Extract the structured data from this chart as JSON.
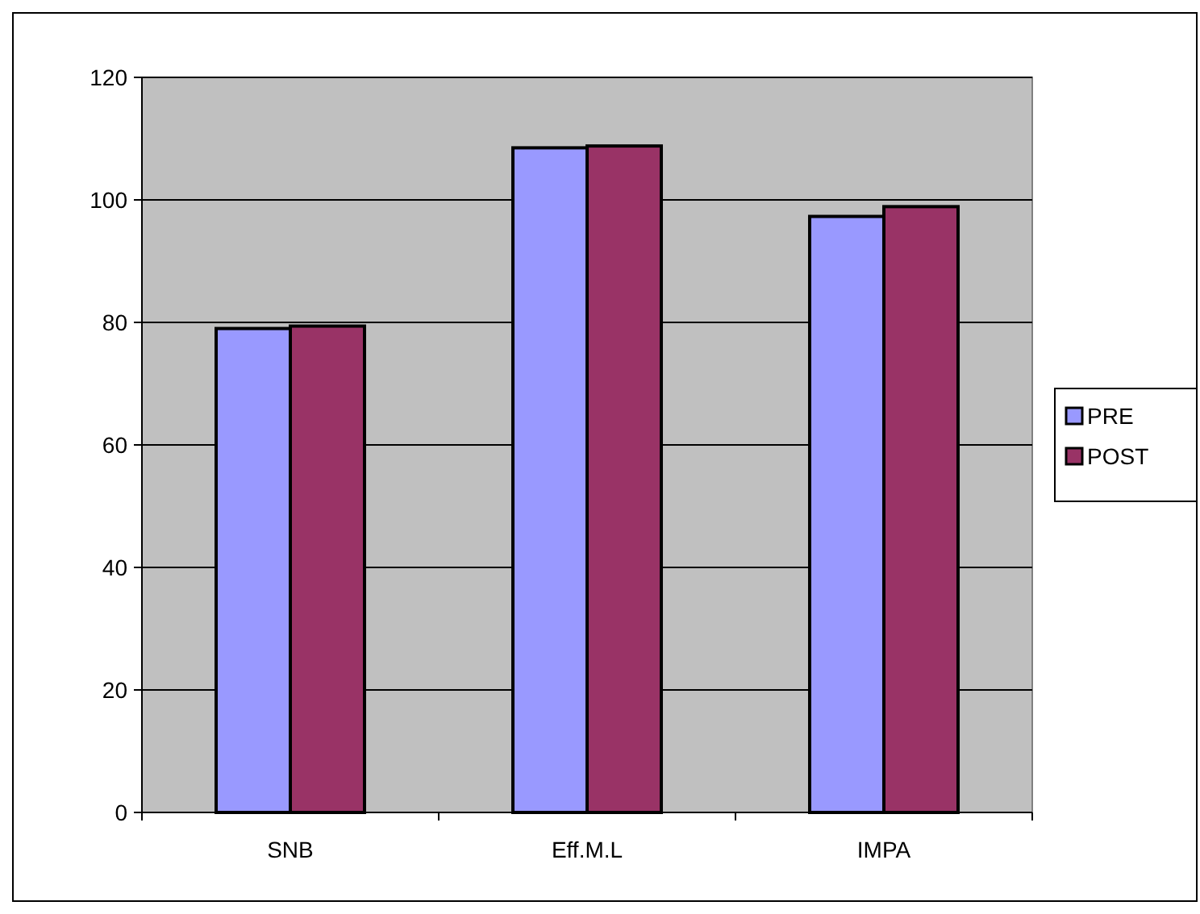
{
  "chart_data": {
    "type": "bar",
    "categories": [
      "SNB",
      "Eff.M.L",
      "IMPA"
    ],
    "series": [
      {
        "name": "PRE",
        "color": "#9999ff",
        "values": [
          79.0,
          108.5,
          97.3
        ]
      },
      {
        "name": "POST",
        "color": "#993366",
        "values": [
          79.4,
          108.8,
          98.9
        ]
      }
    ],
    "ylim": [
      0,
      120
    ],
    "yticks": [
      0,
      20,
      40,
      60,
      80,
      100,
      120
    ],
    "grid": "y",
    "legend": "right"
  }
}
